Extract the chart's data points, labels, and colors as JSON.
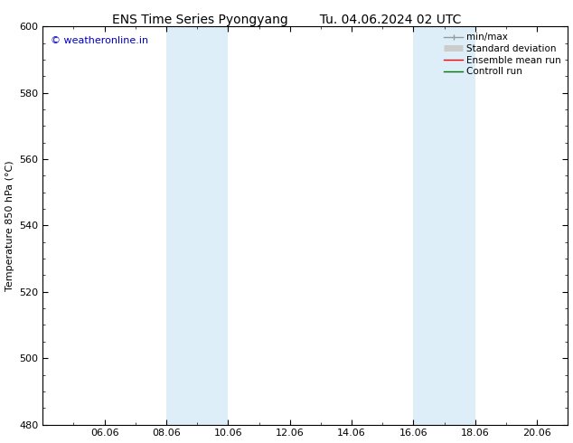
{
  "title_left": "ENS Time Series Pyongyang",
  "title_right": "Tu. 04.06.2024 02 UTC",
  "ylabel": "Temperature 850 hPa (°C)",
  "ylim": [
    480,
    600
  ],
  "yticks": [
    480,
    500,
    520,
    540,
    560,
    580,
    600
  ],
  "xtick_labels": [
    "06.06",
    "08.06",
    "10.06",
    "12.06",
    "14.06",
    "16.06",
    "18.06",
    "20.06"
  ],
  "xtick_positions": [
    2,
    4,
    6,
    8,
    10,
    12,
    14,
    16
  ],
  "xlim": [
    0,
    17
  ],
  "shaded_regions": [
    {
      "x_start": 4,
      "x_end": 6,
      "color": "#ddeef8"
    },
    {
      "x_start": 12,
      "x_end": 14,
      "color": "#ddeef8"
    }
  ],
  "watermark_text": "© weatheronline.in",
  "watermark_color": "#0000bb",
  "bg_color": "#ffffff",
  "plot_bg_color": "#ffffff",
  "border_color": "#000000",
  "tick_label_fontsize": 8,
  "axis_label_fontsize": 8,
  "title_fontsize": 10,
  "legend_fontsize": 7.5,
  "minmax_color": "#999999",
  "std_color": "#cccccc",
  "ens_color": "#ff0000",
  "ctrl_color": "#007700"
}
